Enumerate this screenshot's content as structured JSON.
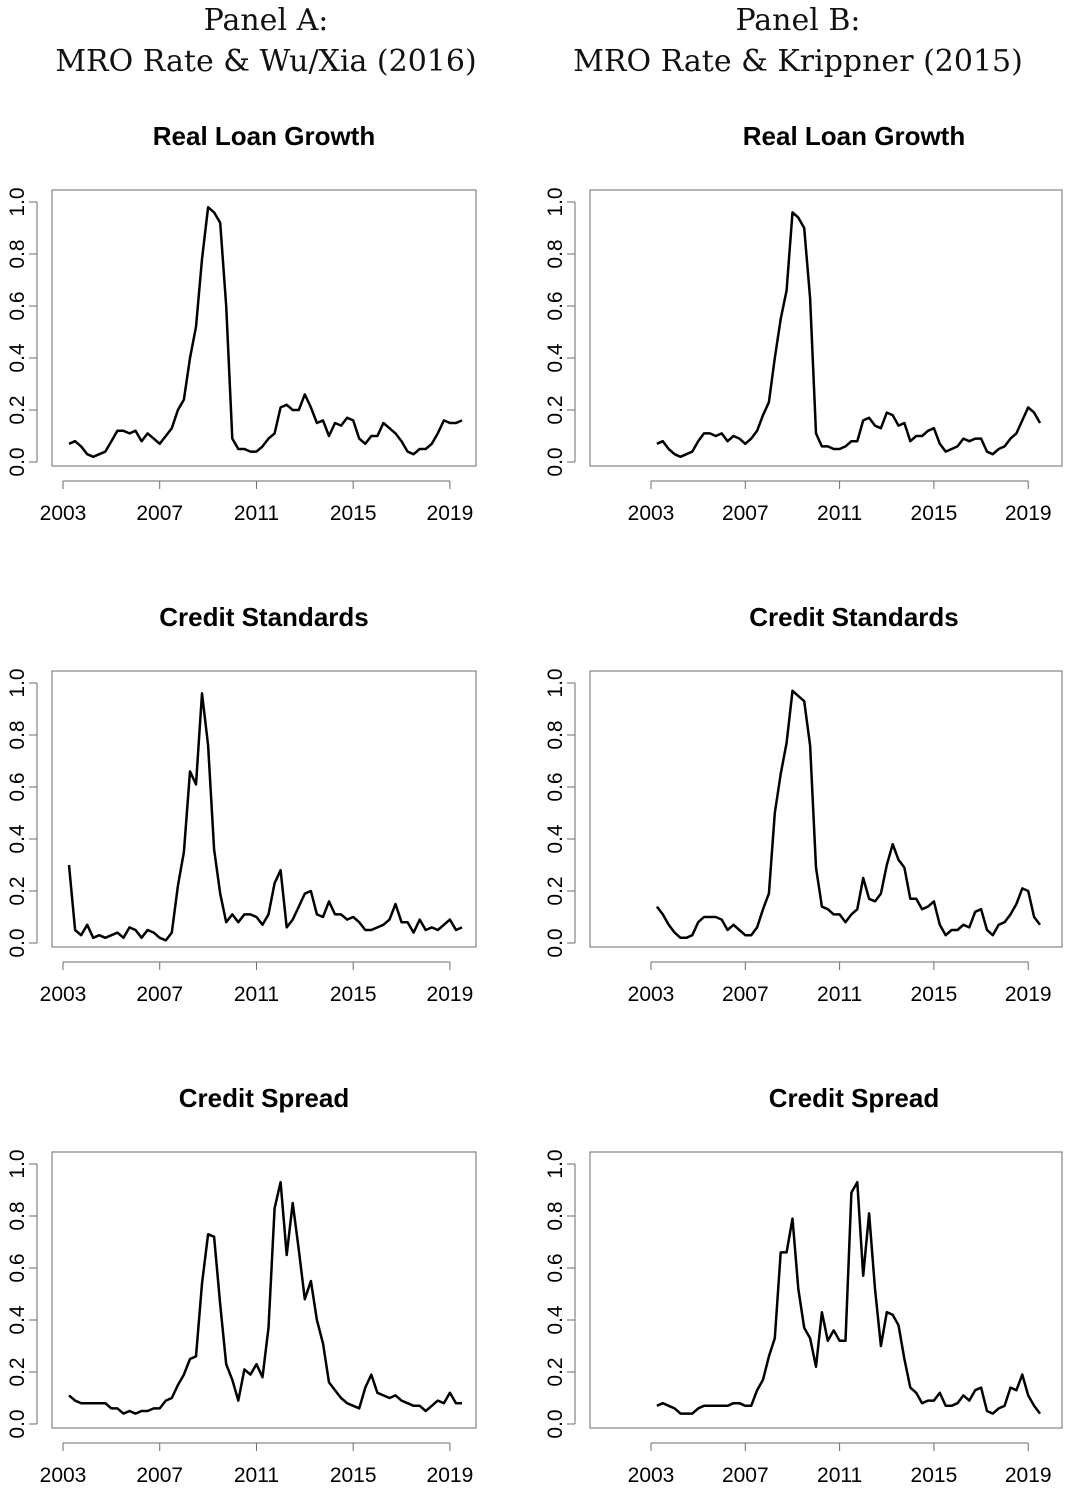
{
  "panels": [
    {
      "line1": "Panel A:",
      "line2": "MRO Rate & Wu/Xia (2016)"
    },
    {
      "line1": "Panel B:",
      "line2": "MRO Rate & Krippner (2015)"
    }
  ],
  "chart_data": [
    {
      "panel": "A",
      "type": "line",
      "title": "Real Loan Growth",
      "xlabel": "",
      "ylabel": "",
      "xlim": [
        2003,
        2019.5
      ],
      "ylim": [
        0,
        1
      ],
      "xticks": [
        "2003",
        "2007",
        "2011",
        "2015",
        "2019"
      ],
      "yticks": [
        "0.0",
        "0.2",
        "0.4",
        "0.6",
        "0.8",
        "1.0"
      ],
      "grid": false,
      "legend": "none",
      "line_color": "#000000",
      "x": [
        2003.25,
        2003.5,
        2003.75,
        2004,
        2004.25,
        2004.5,
        2004.75,
        2005,
        2005.25,
        2005.5,
        2005.75,
        2006,
        2006.25,
        2006.5,
        2006.75,
        2007,
        2007.25,
        2007.5,
        2007.75,
        2008,
        2008.25,
        2008.5,
        2008.75,
        2009,
        2009.25,
        2009.5,
        2009.75,
        2010,
        2010.25,
        2010.5,
        2010.75,
        2011,
        2011.25,
        2011.5,
        2011.75,
        2012,
        2012.25,
        2012.5,
        2012.75,
        2013,
        2013.25,
        2013.5,
        2013.75,
        2014,
        2014.25,
        2014.5,
        2014.75,
        2015,
        2015.25,
        2015.5,
        2015.75,
        2016,
        2016.25,
        2016.5,
        2016.75,
        2017,
        2017.25,
        2017.5,
        2017.75,
        2018,
        2018.25,
        2018.5,
        2018.75,
        2019,
        2019.25,
        2019.5
      ],
      "y": [
        0.07,
        0.08,
        0.06,
        0.03,
        0.02,
        0.03,
        0.04,
        0.08,
        0.12,
        0.12,
        0.11,
        0.12,
        0.08,
        0.11,
        0.09,
        0.07,
        0.1,
        0.13,
        0.2,
        0.24,
        0.4,
        0.52,
        0.78,
        0.98,
        0.96,
        0.92,
        0.6,
        0.09,
        0.05,
        0.05,
        0.04,
        0.04,
        0.06,
        0.09,
        0.11,
        0.21,
        0.22,
        0.2,
        0.2,
        0.26,
        0.21,
        0.15,
        0.16,
        0.1,
        0.15,
        0.14,
        0.17,
        0.16,
        0.09,
        0.07,
        0.1,
        0.1,
        0.15,
        0.13,
        0.11,
        0.08,
        0.04,
        0.03,
        0.05,
        0.05,
        0.07,
        0.11,
        0.16,
        0.15,
        0.15,
        0.16
      ]
    },
    {
      "panel": "A",
      "type": "line",
      "title": "Credit Standards",
      "xlabel": "",
      "ylabel": "",
      "xlim": [
        2003,
        2019.5
      ],
      "ylim": [
        0,
        1
      ],
      "xticks": [
        "2003",
        "2007",
        "2011",
        "2015",
        "2019"
      ],
      "yticks": [
        "0.0",
        "0.2",
        "0.4",
        "0.6",
        "0.8",
        "1.0"
      ],
      "grid": false,
      "legend": "none",
      "line_color": "#000000",
      "x": [
        2003.25,
        2003.5,
        2003.75,
        2004,
        2004.25,
        2004.5,
        2004.75,
        2005,
        2005.25,
        2005.5,
        2005.75,
        2006,
        2006.25,
        2006.5,
        2006.75,
        2007,
        2007.25,
        2007.5,
        2007.75,
        2008,
        2008.25,
        2008.5,
        2008.75,
        2009,
        2009.25,
        2009.5,
        2009.75,
        2010,
        2010.25,
        2010.5,
        2010.75,
        2011,
        2011.25,
        2011.5,
        2011.75,
        2012,
        2012.25,
        2012.5,
        2012.75,
        2013,
        2013.25,
        2013.5,
        2013.75,
        2014,
        2014.25,
        2014.5,
        2014.75,
        2015,
        2015.25,
        2015.5,
        2015.75,
        2016,
        2016.25,
        2016.5,
        2016.75,
        2017,
        2017.25,
        2017.5,
        2017.75,
        2018,
        2018.25,
        2018.5,
        2018.75,
        2019,
        2019.25,
        2019.5
      ],
      "y": [
        0.3,
        0.05,
        0.03,
        0.07,
        0.02,
        0.03,
        0.02,
        0.03,
        0.04,
        0.02,
        0.06,
        0.05,
        0.02,
        0.05,
        0.04,
        0.02,
        0.01,
        0.04,
        0.22,
        0.35,
        0.66,
        0.61,
        0.96,
        0.76,
        0.36,
        0.19,
        0.08,
        0.11,
        0.08,
        0.11,
        0.11,
        0.1,
        0.07,
        0.11,
        0.23,
        0.28,
        0.06,
        0.09,
        0.14,
        0.19,
        0.2,
        0.11,
        0.1,
        0.16,
        0.11,
        0.11,
        0.09,
        0.1,
        0.08,
        0.05,
        0.05,
        0.06,
        0.07,
        0.09,
        0.15,
        0.08,
        0.08,
        0.04,
        0.09,
        0.05,
        0.06,
        0.05,
        0.07,
        0.09,
        0.05,
        0.06
      ]
    },
    {
      "panel": "A",
      "type": "line",
      "title": "Credit Spread",
      "xlabel": "",
      "ylabel": "",
      "xlim": [
        2003,
        2019.5
      ],
      "ylim": [
        0,
        1
      ],
      "xticks": [
        "2003",
        "2007",
        "2011",
        "2015",
        "2019"
      ],
      "yticks": [
        "0.0",
        "0.2",
        "0.4",
        "0.6",
        "0.8",
        "1.0"
      ],
      "grid": false,
      "legend": "none",
      "line_color": "#000000",
      "x": [
        2003.25,
        2003.5,
        2003.75,
        2004,
        2004.25,
        2004.5,
        2004.75,
        2005,
        2005.25,
        2005.5,
        2005.75,
        2006,
        2006.25,
        2006.5,
        2006.75,
        2007,
        2007.25,
        2007.5,
        2007.75,
        2008,
        2008.25,
        2008.5,
        2008.75,
        2009,
        2009.25,
        2009.5,
        2009.75,
        2010,
        2010.25,
        2010.5,
        2010.75,
        2011,
        2011.25,
        2011.5,
        2011.75,
        2012,
        2012.25,
        2012.5,
        2012.75,
        2013,
        2013.25,
        2013.5,
        2013.75,
        2014,
        2014.25,
        2014.5,
        2014.75,
        2015,
        2015.25,
        2015.5,
        2015.75,
        2016,
        2016.25,
        2016.5,
        2016.75,
        2017,
        2017.25,
        2017.5,
        2017.75,
        2018,
        2018.25,
        2018.5,
        2018.75,
        2019,
        2019.25,
        2019.5
      ],
      "y": [
        0.11,
        0.09,
        0.08,
        0.08,
        0.08,
        0.08,
        0.08,
        0.06,
        0.06,
        0.04,
        0.05,
        0.04,
        0.05,
        0.05,
        0.06,
        0.06,
        0.09,
        0.1,
        0.15,
        0.19,
        0.25,
        0.26,
        0.54,
        0.73,
        0.72,
        0.46,
        0.23,
        0.17,
        0.09,
        0.21,
        0.19,
        0.23,
        0.18,
        0.37,
        0.83,
        0.93,
        0.65,
        0.85,
        0.67,
        0.48,
        0.55,
        0.4,
        0.31,
        0.16,
        0.13,
        0.1,
        0.08,
        0.07,
        0.06,
        0.14,
        0.19,
        0.12,
        0.11,
        0.1,
        0.11,
        0.09,
        0.08,
        0.07,
        0.07,
        0.05,
        0.07,
        0.09,
        0.08,
        0.12,
        0.08,
        0.08
      ]
    },
    {
      "panel": "B",
      "type": "line",
      "title": "Real Loan Growth",
      "xlabel": "",
      "ylabel": "",
      "xlim": [
        2003,
        2019.5
      ],
      "ylim": [
        0,
        1
      ],
      "xticks": [
        "2003",
        "2007",
        "2011",
        "2015",
        "2019"
      ],
      "yticks": [
        "0.0",
        "0.2",
        "0.4",
        "0.6",
        "0.8",
        "1.0"
      ],
      "grid": false,
      "legend": "none",
      "line_color": "#000000",
      "x": [
        2003.25,
        2003.5,
        2003.75,
        2004,
        2004.25,
        2004.5,
        2004.75,
        2005,
        2005.25,
        2005.5,
        2005.75,
        2006,
        2006.25,
        2006.5,
        2006.75,
        2007,
        2007.25,
        2007.5,
        2007.75,
        2008,
        2008.25,
        2008.5,
        2008.75,
        2009,
        2009.25,
        2009.5,
        2009.75,
        2010,
        2010.25,
        2010.5,
        2010.75,
        2011,
        2011.25,
        2011.5,
        2011.75,
        2012,
        2012.25,
        2012.5,
        2012.75,
        2013,
        2013.25,
        2013.5,
        2013.75,
        2014,
        2014.25,
        2014.5,
        2014.75,
        2015,
        2015.25,
        2015.5,
        2015.75,
        2016,
        2016.25,
        2016.5,
        2016.75,
        2017,
        2017.25,
        2017.5,
        2017.75,
        2018,
        2018.25,
        2018.5,
        2018.75,
        2019,
        2019.25,
        2019.5
      ],
      "y": [
        0.07,
        0.08,
        0.05,
        0.03,
        0.02,
        0.03,
        0.04,
        0.08,
        0.11,
        0.11,
        0.1,
        0.11,
        0.08,
        0.1,
        0.09,
        0.07,
        0.09,
        0.12,
        0.18,
        0.23,
        0.4,
        0.55,
        0.66,
        0.96,
        0.94,
        0.9,
        0.63,
        0.11,
        0.06,
        0.06,
        0.05,
        0.05,
        0.06,
        0.08,
        0.08,
        0.16,
        0.17,
        0.14,
        0.13,
        0.19,
        0.18,
        0.14,
        0.15,
        0.08,
        0.1,
        0.1,
        0.12,
        0.13,
        0.07,
        0.04,
        0.05,
        0.06,
        0.09,
        0.08,
        0.09,
        0.09,
        0.04,
        0.03,
        0.05,
        0.06,
        0.09,
        0.11,
        0.16,
        0.21,
        0.19,
        0.15
      ]
    },
    {
      "panel": "B",
      "type": "line",
      "title": "Credit Standards",
      "xlabel": "",
      "ylabel": "",
      "xlim": [
        2003,
        2019.5
      ],
      "ylim": [
        0,
        1
      ],
      "xticks": [
        "2003",
        "2007",
        "2011",
        "2015",
        "2019"
      ],
      "yticks": [
        "0.0",
        "0.2",
        "0.4",
        "0.6",
        "0.8",
        "1.0"
      ],
      "grid": false,
      "legend": "none",
      "line_color": "#000000",
      "x": [
        2003.25,
        2003.5,
        2003.75,
        2004,
        2004.25,
        2004.5,
        2004.75,
        2005,
        2005.25,
        2005.5,
        2005.75,
        2006,
        2006.25,
        2006.5,
        2006.75,
        2007,
        2007.25,
        2007.5,
        2007.75,
        2008,
        2008.25,
        2008.5,
        2008.75,
        2009,
        2009.25,
        2009.5,
        2009.75,
        2010,
        2010.25,
        2010.5,
        2010.75,
        2011,
        2011.25,
        2011.5,
        2011.75,
        2012,
        2012.25,
        2012.5,
        2012.75,
        2013,
        2013.25,
        2013.5,
        2013.75,
        2014,
        2014.25,
        2014.5,
        2014.75,
        2015,
        2015.25,
        2015.5,
        2015.75,
        2016,
        2016.25,
        2016.5,
        2016.75,
        2017,
        2017.25,
        2017.5,
        2017.75,
        2018,
        2018.25,
        2018.5,
        2018.75,
        2019,
        2019.25,
        2019.5
      ],
      "y": [
        0.14,
        0.11,
        0.07,
        0.04,
        0.02,
        0.02,
        0.03,
        0.08,
        0.1,
        0.1,
        0.1,
        0.09,
        0.05,
        0.07,
        0.05,
        0.03,
        0.03,
        0.06,
        0.13,
        0.19,
        0.5,
        0.65,
        0.77,
        0.97,
        0.95,
        0.93,
        0.76,
        0.29,
        0.14,
        0.13,
        0.11,
        0.11,
        0.08,
        0.11,
        0.13,
        0.25,
        0.17,
        0.16,
        0.19,
        0.3,
        0.38,
        0.32,
        0.29,
        0.17,
        0.17,
        0.13,
        0.14,
        0.16,
        0.07,
        0.03,
        0.05,
        0.05,
        0.07,
        0.06,
        0.12,
        0.13,
        0.05,
        0.03,
        0.07,
        0.08,
        0.11,
        0.15,
        0.21,
        0.2,
        0.1,
        0.07
      ]
    },
    {
      "panel": "B",
      "type": "line",
      "title": "Credit Spread",
      "xlabel": "",
      "ylabel": "",
      "xlim": [
        2003,
        2019.5
      ],
      "ylim": [
        0,
        1
      ],
      "xticks": [
        "2003",
        "2007",
        "2011",
        "2015",
        "2019"
      ],
      "yticks": [
        "0.0",
        "0.2",
        "0.4",
        "0.6",
        "0.8",
        "1.0"
      ],
      "grid": false,
      "legend": "none",
      "line_color": "#000000",
      "x": [
        2003.25,
        2003.5,
        2003.75,
        2004,
        2004.25,
        2004.5,
        2004.75,
        2005,
        2005.25,
        2005.5,
        2005.75,
        2006,
        2006.25,
        2006.5,
        2006.75,
        2007,
        2007.25,
        2007.5,
        2007.75,
        2008,
        2008.25,
        2008.5,
        2008.75,
        2009,
        2009.25,
        2009.5,
        2009.75,
        2010,
        2010.25,
        2010.5,
        2010.75,
        2011,
        2011.25,
        2011.5,
        2011.75,
        2012,
        2012.25,
        2012.5,
        2012.75,
        2013,
        2013.25,
        2013.5,
        2013.75,
        2014,
        2014.25,
        2014.5,
        2014.75,
        2015,
        2015.25,
        2015.5,
        2015.75,
        2016,
        2016.25,
        2016.5,
        2016.75,
        2017,
        2017.25,
        2017.5,
        2017.75,
        2018,
        2018.25,
        2018.5,
        2018.75,
        2019,
        2019.25,
        2019.5
      ],
      "y": [
        0.07,
        0.08,
        0.07,
        0.06,
        0.04,
        0.04,
        0.04,
        0.06,
        0.07,
        0.07,
        0.07,
        0.07,
        0.07,
        0.08,
        0.08,
        0.07,
        0.07,
        0.13,
        0.17,
        0.26,
        0.33,
        0.66,
        0.66,
        0.79,
        0.52,
        0.37,
        0.33,
        0.22,
        0.43,
        0.32,
        0.36,
        0.32,
        0.32,
        0.89,
        0.93,
        0.57,
        0.81,
        0.52,
        0.3,
        0.43,
        0.42,
        0.38,
        0.25,
        0.14,
        0.12,
        0.08,
        0.09,
        0.09,
        0.12,
        0.07,
        0.07,
        0.08,
        0.11,
        0.09,
        0.13,
        0.14,
        0.05,
        0.04,
        0.06,
        0.07,
        0.14,
        0.13,
        0.19,
        0.11,
        0.07,
        0.04
      ]
    }
  ]
}
